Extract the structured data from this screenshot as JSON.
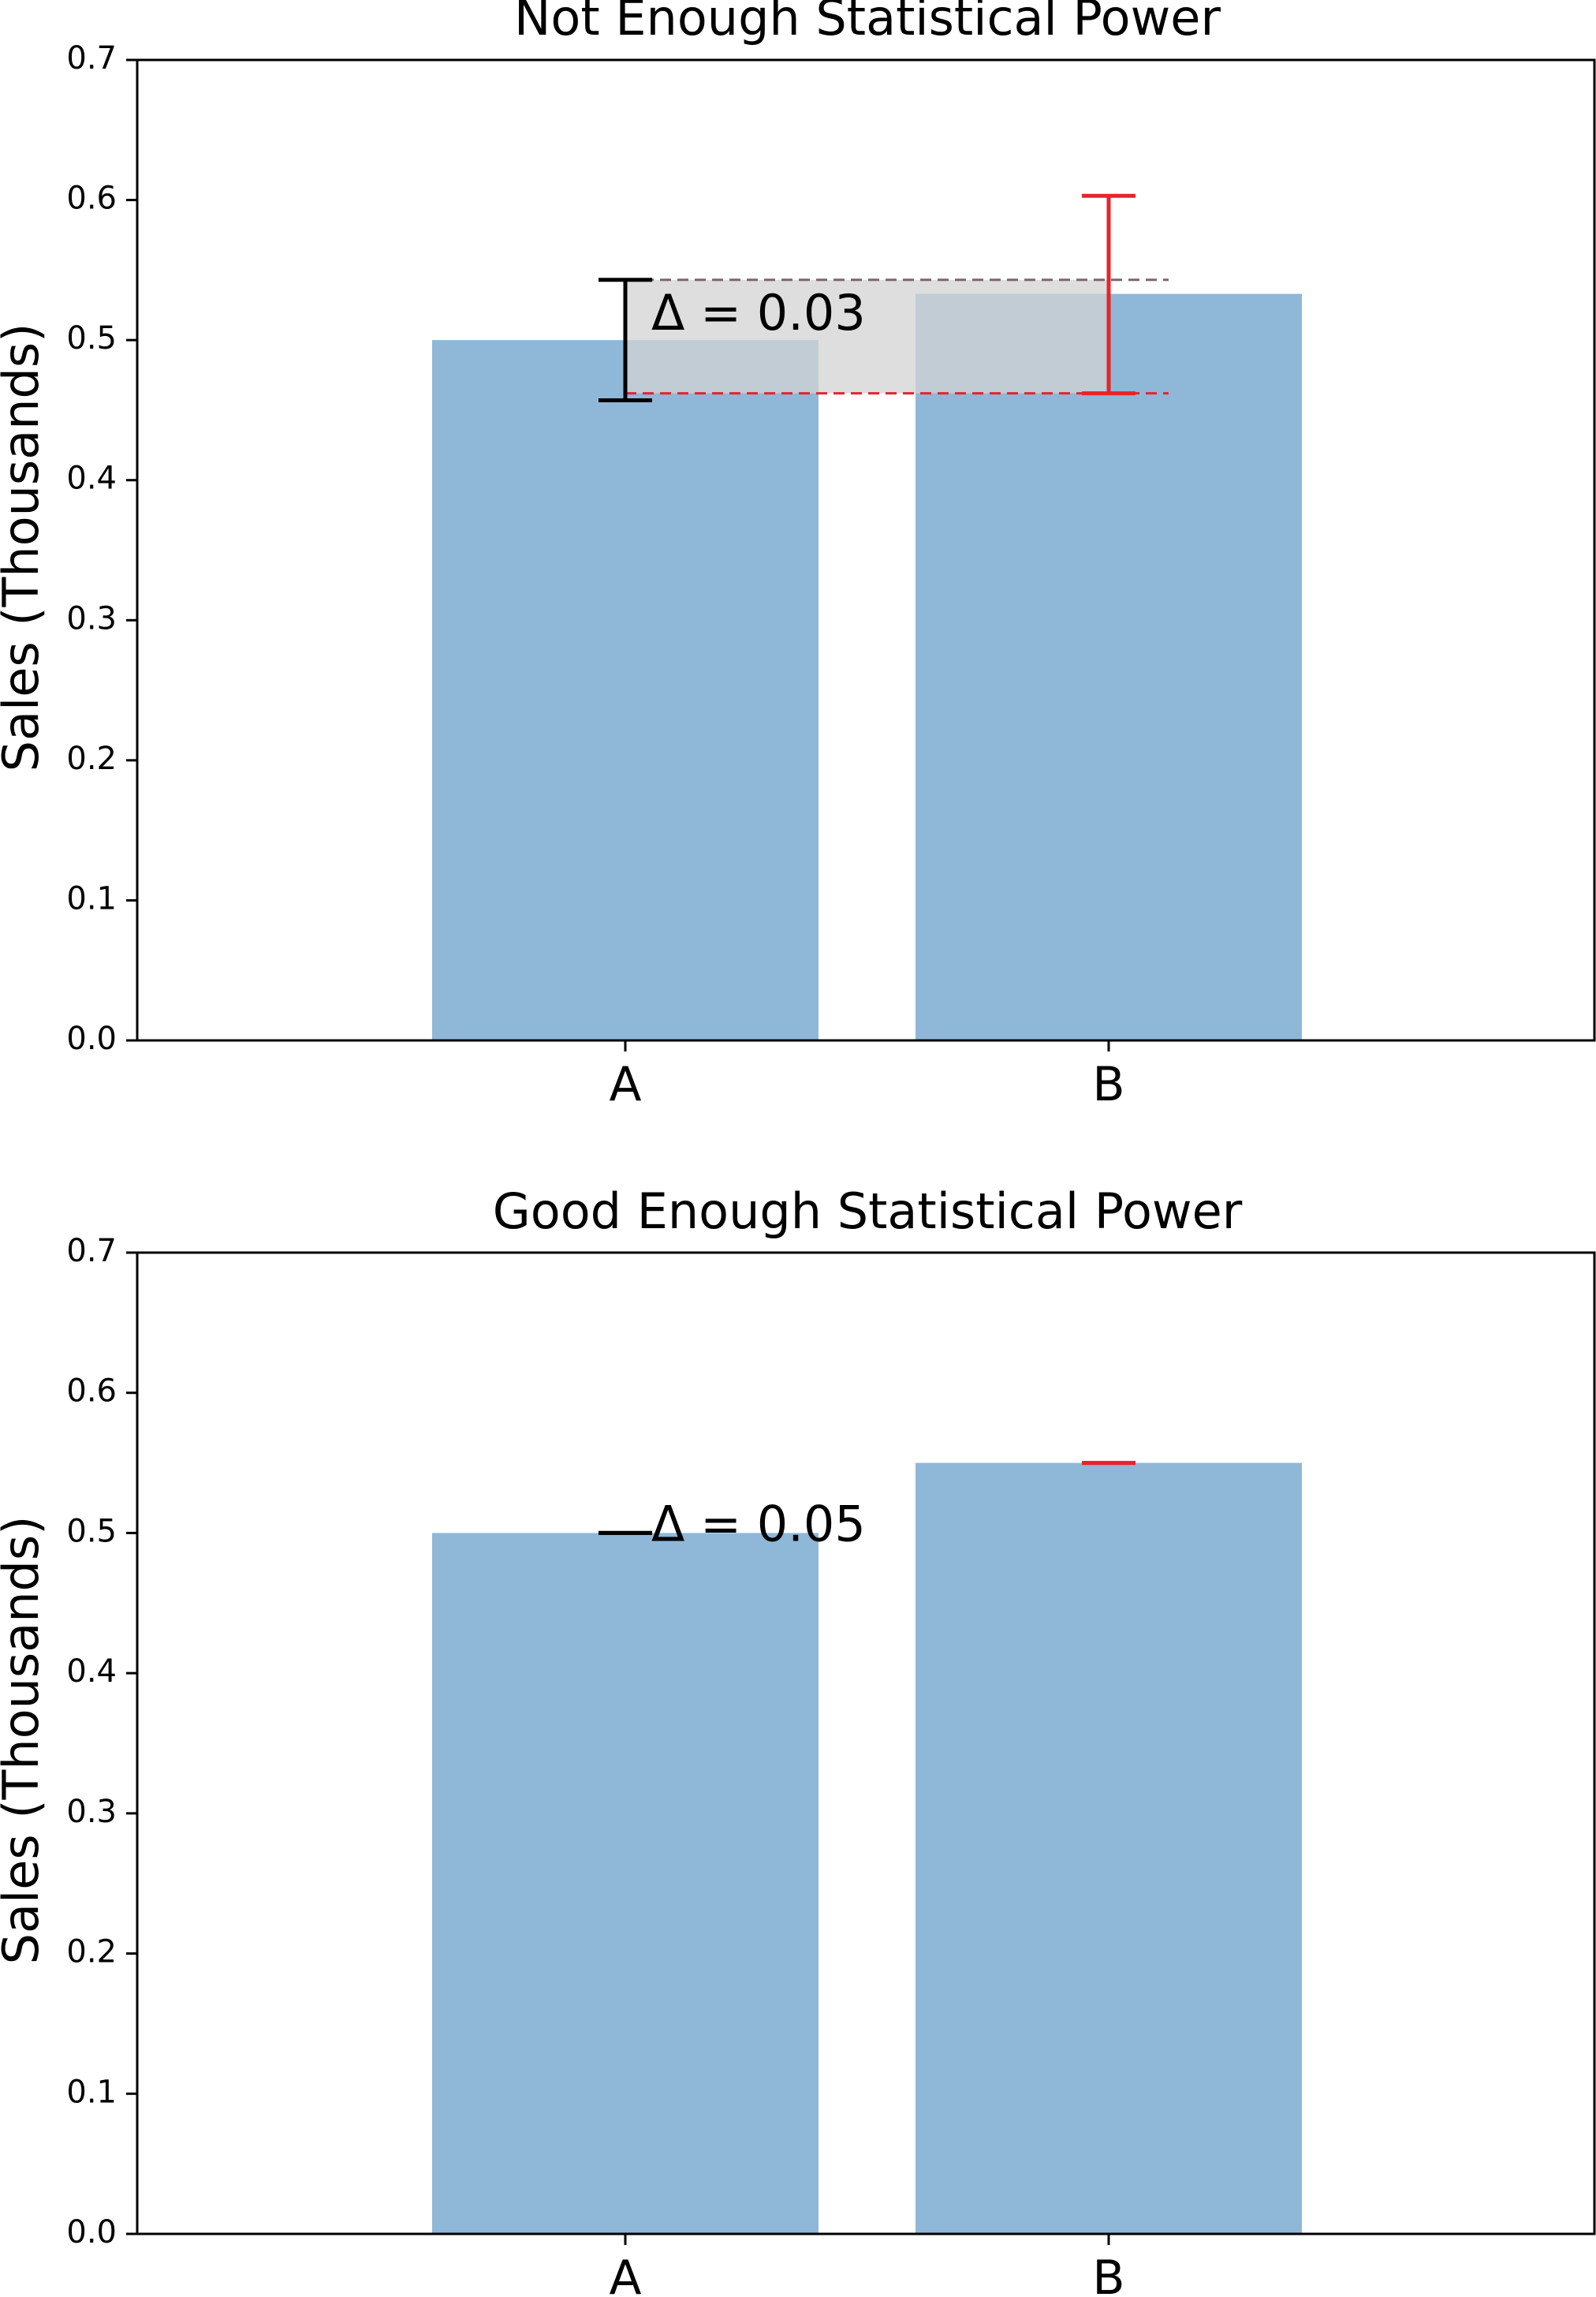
{
  "chart_data": [
    {
      "type": "bar",
      "title": "Not Enough Statistical Power",
      "categories": [
        "A",
        "B"
      ],
      "values": [
        0.5,
        0.533
      ],
      "bar_color": "#8fb8d8",
      "ylabel": "Sales (Thousands)",
      "ylim": [
        0,
        0.7
      ],
      "yticks": [
        "0.0",
        "0.1",
        "0.2",
        "0.3",
        "0.4",
        "0.5",
        "0.6",
        "0.7"
      ],
      "error_bars": [
        {
          "category": "A",
          "low": 0.457,
          "high": 0.543,
          "color": "#000000"
        },
        {
          "category": "B",
          "low": 0.462,
          "high": 0.603,
          "color": "#e8232a"
        }
      ],
      "reference_lines": [
        {
          "y": 0.543,
          "color": "#7a6670",
          "style": "dashed"
        },
        {
          "y": 0.462,
          "color": "#e8232a",
          "style": "dashed"
        }
      ],
      "shaded_band": {
        "low": 0.462,
        "high": 0.543,
        "color": "#d3d3d3"
      },
      "annotation": "Δ =  0.03"
    },
    {
      "type": "bar",
      "title": "Good Enough Statistical Power",
      "categories": [
        "A",
        "B"
      ],
      "values": [
        0.5,
        0.55
      ],
      "bar_color": "#8fb8d8",
      "ylabel": "Sales (Thousands)",
      "ylim": [
        0,
        0.7
      ],
      "yticks": [
        "0.0",
        "0.1",
        "0.2",
        "0.3",
        "0.4",
        "0.5",
        "0.6",
        "0.7"
      ],
      "error_bars": [
        {
          "category": "A",
          "low": 0.5,
          "high": 0.5,
          "color": "#000000"
        },
        {
          "category": "B",
          "low": 0.55,
          "high": 0.55,
          "color": "#e8232a"
        }
      ],
      "annotation": "Δ =  0.05"
    }
  ]
}
